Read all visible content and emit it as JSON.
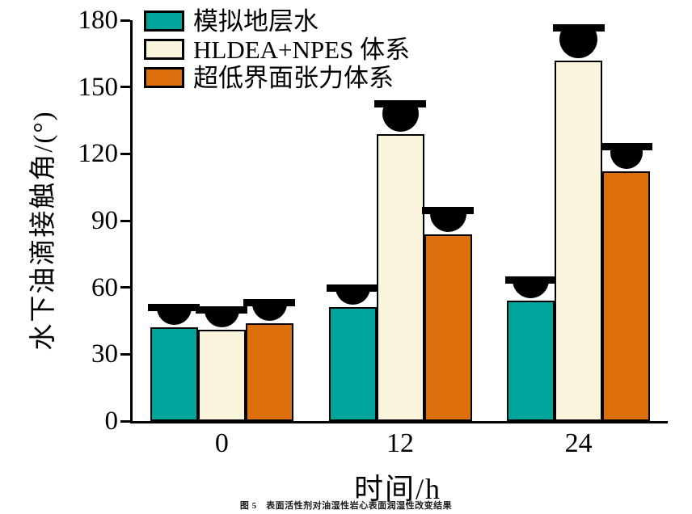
{
  "caption": "图 5　表面活性剂对油湿性岩心表面润湿性改变结果",
  "chart_data": {
    "type": "bar",
    "title": "",
    "x_title": "时间/h",
    "y_title": "水下油滴接触角/(°)",
    "categories": [
      "0",
      "12",
      "24"
    ],
    "ylim": [
      0,
      180
    ],
    "y_ticks": [
      0,
      30,
      60,
      90,
      120,
      150,
      180
    ],
    "grid": false,
    "legend_position": "top-left-inside",
    "series": [
      {
        "name": "模拟地层水",
        "color": "#00A49A",
        "values": [
          42,
          51,
          54
        ]
      },
      {
        "name": "HLDEA+NPES 体系",
        "color": "#FAF4DC",
        "values": [
          41,
          129,
          162
        ]
      },
      {
        "name": "超低界面张力体系",
        "color": "#DC6E0B",
        "values": [
          44,
          84,
          112
        ]
      }
    ],
    "droplet_markers": [
      [
        {
          "d": 43,
          "v": 17
        },
        {
          "d": 43,
          "v": 17
        },
        {
          "d": 43,
          "v": 18
        }
      ],
      [
        {
          "d": 43,
          "v": 16
        },
        {
          "d": 45,
          "v": 30
        },
        {
          "d": 45,
          "v": 22
        }
      ],
      [
        {
          "d": 45,
          "v": 18
        },
        {
          "d": 47,
          "v": 33
        },
        {
          "d": 40,
          "v": 23
        }
      ]
    ],
    "colors": {
      "axis": "#000000",
      "background": "#ffffff",
      "marker": "#000000"
    }
  }
}
